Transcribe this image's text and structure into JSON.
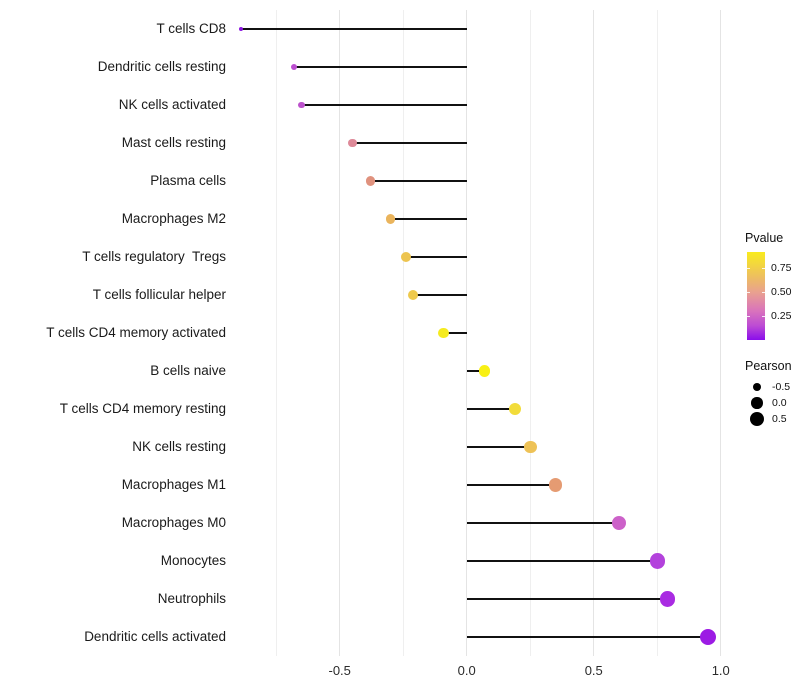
{
  "chart_data": {
    "type": "scatter",
    "subtype": "lollipop",
    "title": "",
    "xlabel": "",
    "ylabel": "",
    "x_axis": {
      "range": [
        -0.92,
        1.06
      ],
      "ticks": [
        -0.5,
        0.0,
        0.5,
        1.0
      ],
      "tick_labels": [
        "-0.5",
        "0.0",
        "0.5",
        "1.0"
      ],
      "gridlines": [
        -0.75,
        -0.5,
        -0.25,
        0.0,
        0.25,
        0.5,
        0.75,
        1.0
      ],
      "major_gridlines": [
        -0.5,
        0.0,
        0.5,
        1.0
      ]
    },
    "grid_color_major": "#e4e4e4",
    "grid_color_minor": "#efefef",
    "line_color": "#111111",
    "points": [
      {
        "label": "T cells CD8",
        "pearson": -0.89,
        "pvalue": 0.001,
        "color": "#8b17e0"
      },
      {
        "label": "Dendritic cells resting",
        "pearson": -0.68,
        "pvalue": 0.17,
        "color": "#bc4fd0"
      },
      {
        "label": "NK cells activated",
        "pearson": -0.65,
        "pvalue": 0.18,
        "color": "#bc52cc"
      },
      {
        "label": "Mast cells resting",
        "pearson": -0.45,
        "pvalue": 0.46,
        "color": "#de8a99"
      },
      {
        "label": "Plasma cells",
        "pearson": -0.38,
        "pvalue": 0.5,
        "color": "#e0927e"
      },
      {
        "label": "Macrophages M2",
        "pearson": -0.3,
        "pvalue": 0.63,
        "color": "#eab45c"
      },
      {
        "label": "T cells regulatory  Tregs",
        "pearson": -0.24,
        "pvalue": 0.68,
        "color": "#edc44f"
      },
      {
        "label": "T cells follicular helper",
        "pearson": -0.21,
        "pvalue": 0.7,
        "color": "#eec94c"
      },
      {
        "label": "T cells CD4 memory activated",
        "pearson": -0.09,
        "pvalue": 0.88,
        "color": "#f5eb1f"
      },
      {
        "label": "B cells naive",
        "pearson": 0.07,
        "pvalue": 0.9,
        "color": "#f8f014"
      },
      {
        "label": "T cells CD4 memory resting",
        "pearson": 0.19,
        "pvalue": 0.78,
        "color": "#f2dc3a"
      },
      {
        "label": "NK cells resting",
        "pearson": 0.25,
        "pvalue": 0.67,
        "color": "#eec256"
      },
      {
        "label": "Macrophages M1",
        "pearson": 0.35,
        "pvalue": 0.52,
        "color": "#e59b72"
      },
      {
        "label": "Macrophages M0",
        "pearson": 0.6,
        "pvalue": 0.2,
        "color": "#cc61c9"
      },
      {
        "label": "Monocytes",
        "pearson": 0.75,
        "pvalue": 0.13,
        "color": "#b342dc"
      },
      {
        "label": "Neutrophils",
        "pearson": 0.79,
        "pvalue": 0.08,
        "color": "#a92be2"
      },
      {
        "label": "Dendritic cells activated",
        "pearson": 0.95,
        "pvalue": 0.02,
        "color": "#9c1be4"
      }
    ],
    "legend": {
      "pvalue": {
        "title": "Pvalue",
        "range": [
          0.0,
          0.92
        ],
        "tick_values": [
          0.75,
          0.5,
          0.25
        ],
        "tick_labels": [
          "0.75",
          "0.50",
          "0.25"
        ],
        "gradient_stops": [
          {
            "color": "#f9eb1e",
            "pos": 0
          },
          {
            "color": "#f3d83c",
            "pos": 13
          },
          {
            "color": "#edbd62",
            "pos": 29
          },
          {
            "color": "#e9a090",
            "pos": 46
          },
          {
            "color": "#d973bc",
            "pos": 67
          },
          {
            "color": "#bc4bd4",
            "pos": 84
          },
          {
            "color": "#8a0deb",
            "pos": 100
          }
        ]
      },
      "pearson": {
        "title": "Pearson",
        "dot_color": "#000000",
        "items": [
          {
            "label": "-0.5",
            "value": -0.5
          },
          {
            "label": "0.0",
            "value": 0.0
          },
          {
            "label": "0.5",
            "value": 0.5
          }
        ]
      }
    }
  }
}
